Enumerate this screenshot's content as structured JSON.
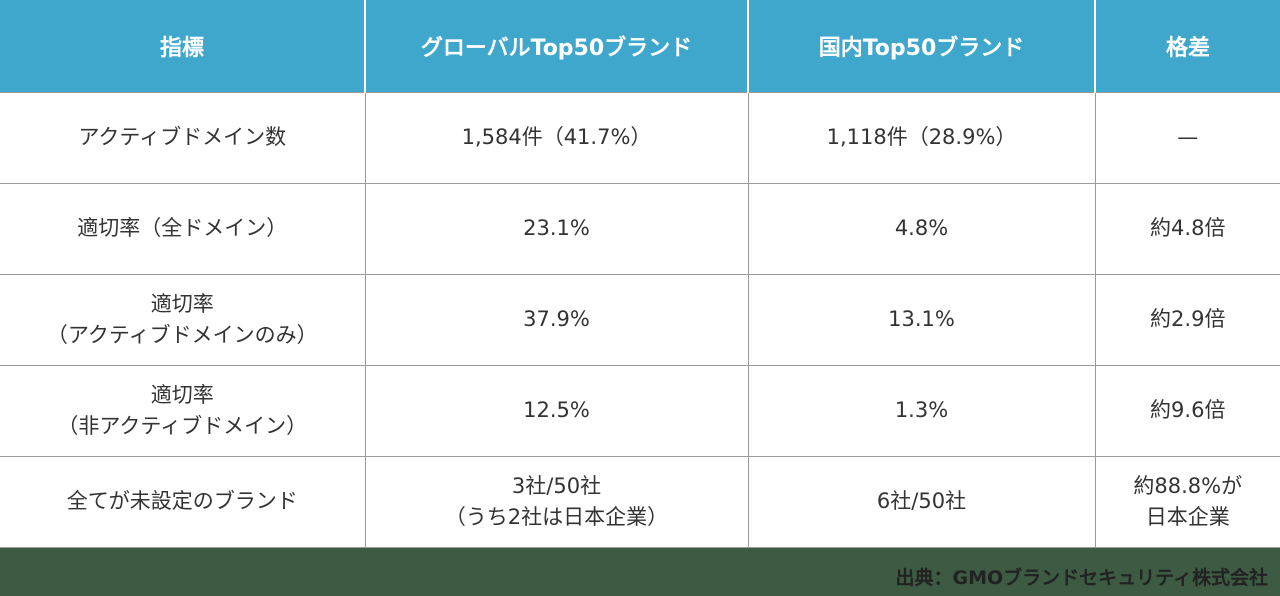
{
  "header": {
    "col1": "指標",
    "col2": "グローバルTop50ブランド",
    "col3": "国内Top50ブランド",
    "col4": "格差"
  },
  "rows": [
    {
      "indicator": "アクティブドメイン数",
      "global": "1,584件（41.7%）",
      "domestic": "1,118件（28.9%）",
      "gap": "—"
    },
    {
      "indicator": "適切率（全ドメイン）",
      "global": "23.1%",
      "domestic": "4.8%",
      "gap": "約4.8倍"
    },
    {
      "indicator": "適切率\n（アクティブドメインのみ）",
      "global": "37.9%",
      "domestic": "13.1%",
      "gap": "約2.9倍"
    },
    {
      "indicator": "適切率\n（非アクティブドメイン）",
      "global": "12.5%",
      "domestic": "1.3%",
      "gap": "約9.6倍"
    },
    {
      "indicator": "全てが未設定のブランド",
      "global": "3社/50社\n（うち2社は日本企業）",
      "domestic": "6社/50社",
      "gap": "約88.8%が\n日本企業"
    }
  ],
  "source": "出典：GMOブランドセキュリティ株式会社",
  "colors": {
    "header_bg": "#3fa7cc",
    "footer_bg": "#3d5a42",
    "text": "#333333",
    "border": "#9a9a9a"
  }
}
